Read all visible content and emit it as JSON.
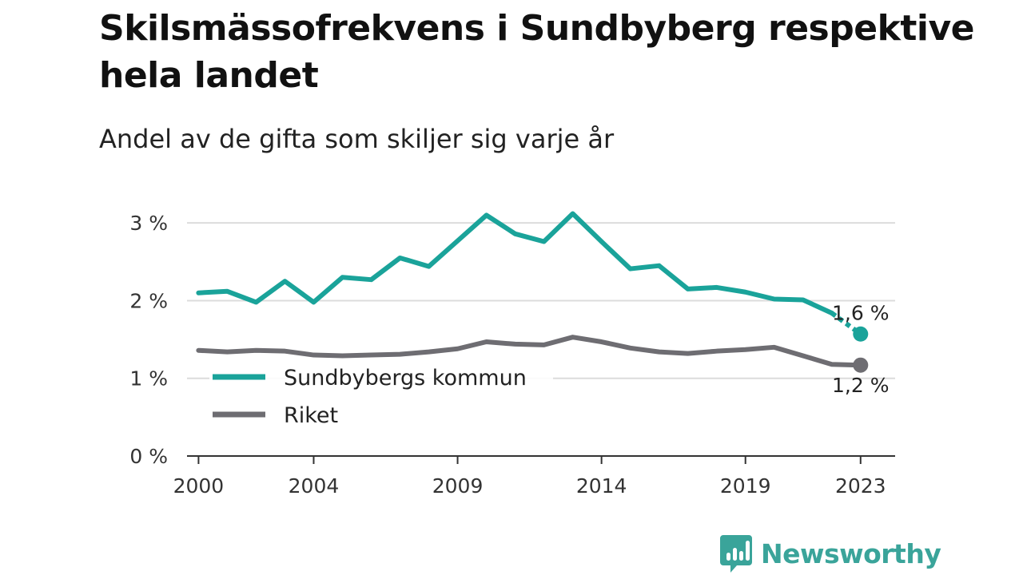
{
  "title": "Skilsmässofrekvens i Sundbyberg respektive hela landet",
  "subtitle": "Andel av de gifta som skiljer sig varje år",
  "brand": {
    "name": "Newsworthy",
    "icon": "newsworthy-logo-icon",
    "color": "#3aa49a"
  },
  "chart_data": {
    "type": "line",
    "x": [
      2000,
      2001,
      2002,
      2003,
      2004,
      2005,
      2006,
      2007,
      2008,
      2009,
      2010,
      2011,
      2012,
      2013,
      2014,
      2015,
      2016,
      2017,
      2018,
      2019,
      2020,
      2021,
      2022,
      2023
    ],
    "x_ticks": [
      2000,
      2004,
      2009,
      2014,
      2019,
      2023
    ],
    "y_ticks": [
      {
        "value": 0,
        "label": "0 %"
      },
      {
        "value": 1,
        "label": "1 %"
      },
      {
        "value": 2,
        "label": "2 %"
      },
      {
        "value": 3,
        "label": "3 %"
      }
    ],
    "xlim": [
      1999.6,
      2024.2
    ],
    "ylim": [
      0,
      3.3
    ],
    "grid": true,
    "legend_position": "bottom-left",
    "series": [
      {
        "name": "Sundbybergs kommun",
        "color": "#1aa39a",
        "values": [
          2.1,
          2.12,
          1.98,
          2.25,
          1.98,
          2.3,
          2.27,
          2.55,
          2.44,
          2.77,
          3.1,
          2.86,
          2.76,
          3.12,
          2.76,
          2.41,
          2.45,
          2.15,
          2.17,
          2.11,
          2.02,
          2.01,
          1.84,
          1.57
        ],
        "end_label": "1,6 %",
        "dashed_last_segment": true
      },
      {
        "name": "Riket",
        "color": "#6e6d72",
        "values": [
          1.36,
          1.34,
          1.36,
          1.35,
          1.3,
          1.29,
          1.3,
          1.31,
          1.34,
          1.38,
          1.47,
          1.44,
          1.43,
          1.53,
          1.47,
          1.39,
          1.34,
          1.32,
          1.35,
          1.37,
          1.4,
          1.29,
          1.18,
          1.17
        ],
        "end_label": "1,2 %",
        "dashed_last_segment": false
      }
    ]
  }
}
